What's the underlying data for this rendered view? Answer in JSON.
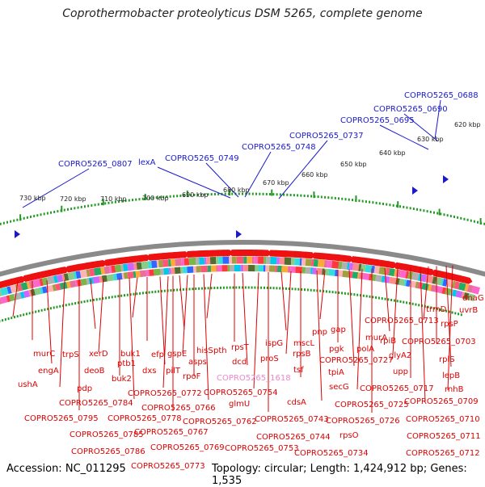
{
  "title": "Coprothermobacter proteolyticus DSM 5265, complete genome",
  "footer": {
    "accession_label": "Accession:",
    "accession": "NC_011295",
    "topology_label": "Topology:",
    "topology": "circular;",
    "length_label": "Length:",
    "length": "1,424,912 bp;",
    "genes_label": "Genes:",
    "genes": "1,535"
  },
  "colors": {
    "top_labels": "#1a1acc",
    "bottom_labels": "#dd0000",
    "highlight_label": "#ee88cc",
    "backbone": "#888888",
    "tick_marks": "#229922"
  },
  "kbp_ticks": [
    "730 kbp",
    "720 kbp",
    "710 kbp",
    "700 kbp",
    "690 kbp",
    "680 kbp",
    "670 kbp",
    "660 kbp",
    "650 kbp",
    "640 kbp",
    "630 kbp",
    "620 kbp"
  ],
  "top_genes": [
    "COPRO5265_0807",
    "lexA",
    "COPRO5265_0749",
    "COPRO5265_0748",
    "COPRO5265_0737",
    "COPRO5265_0695",
    "COPRO5265_0690",
    "COPRO5265_0688"
  ],
  "bottom_genes": [
    "ushA",
    "murC",
    "engA",
    "trpS",
    "pdp",
    "deoB",
    "xerD",
    "ptb1",
    "buk2",
    "buk1",
    "dxs",
    "efp",
    "pilT",
    "gspE",
    "rpoF",
    "asps",
    "hisS",
    "pth",
    "rpsT",
    "dcd",
    "COPRO5265_1618",
    "glmU",
    "ispG",
    "proS",
    "rpsB",
    "tsf",
    "mscL",
    "cdsA",
    "pnp",
    "pgk",
    "gap",
    "tpiA",
    "secG",
    "polA",
    "murA",
    "rpiB",
    "glyA2",
    "upp",
    "trmD",
    "rpsP",
    "rplS",
    "lepB",
    "rnhB",
    "uvrB",
    "dnaG",
    "rpsO",
    "COPRO5265_0795",
    "COPRO5265_0784",
    "COPRO5265_0785",
    "COPRO5265_0786",
    "COPRO5265_0778",
    "COPRO5265_0772",
    "COPRO5265_0766",
    "COPRO5265_0767",
    "COPRO5265_0769",
    "COPRO5265_0773",
    "COPRO5265_0762",
    "COPRO5265_0754",
    "COPRO5265_0753",
    "COPRO5265_0743",
    "COPRO5265_0744",
    "COPRO5265_0734",
    "COPRO5265_0727",
    "COPRO5265_0725",
    "COPRO5265_0726",
    "COPRO5265_0713",
    "COPRO5265_0717",
    "COPRO5265_0703",
    "COPRO5265_0709",
    "COPRO5265_0710",
    "COPRO5265_0711",
    "COPRO5265_0712"
  ]
}
